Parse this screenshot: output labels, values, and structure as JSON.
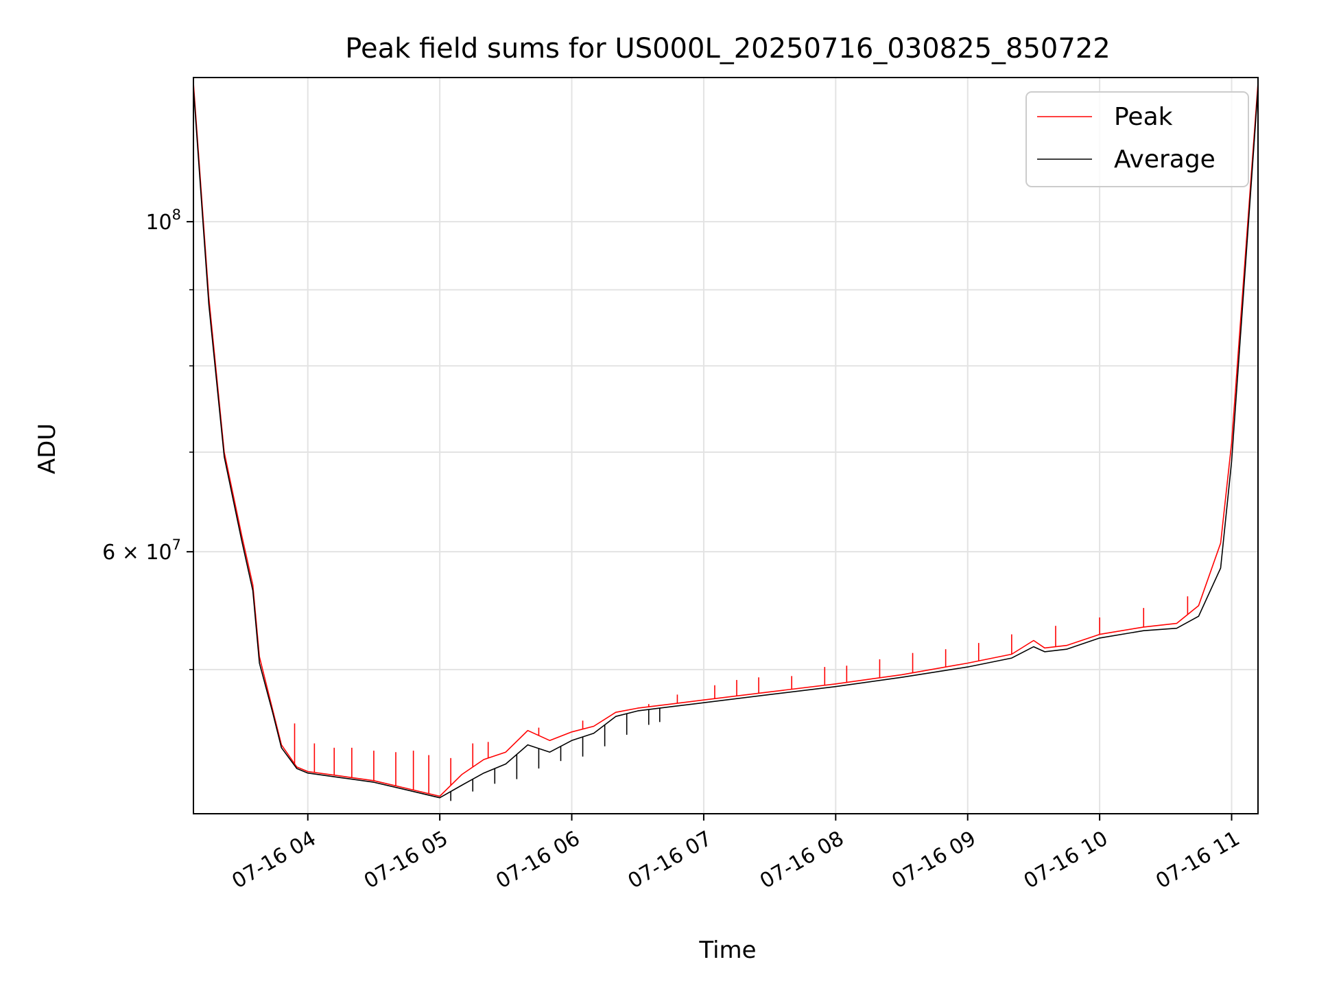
{
  "chart_data": {
    "type": "line",
    "title": "Peak field sums for US000L_20250716_030825_850722",
    "xlabel": "Time",
    "ylabel": "ADU",
    "yscale": "log",
    "xlim": [
      "2025-07-16T03:08",
      "2025-07-16T11:12"
    ],
    "ylim": [
      40000000,
      125000000
    ],
    "grid": true,
    "legend_position": "top-right",
    "x_ticks": [
      {
        "value": "2025-07-16T04:00",
        "label": "07-16 04"
      },
      {
        "value": "2025-07-16T05:00",
        "label": "07-16 05"
      },
      {
        "value": "2025-07-16T06:00",
        "label": "07-16 06"
      },
      {
        "value": "2025-07-16T07:00",
        "label": "07-16 07"
      },
      {
        "value": "2025-07-16T08:00",
        "label": "07-16 08"
      },
      {
        "value": "2025-07-16T09:00",
        "label": "07-16 09"
      },
      {
        "value": "2025-07-16T10:00",
        "label": "07-16 10"
      },
      {
        "value": "2025-07-16T11:00",
        "label": "07-16 11"
      }
    ],
    "y_major_ticks": [
      {
        "value": 100000000,
        "label_base": "10",
        "label_exp": "8",
        "label_coef": ""
      },
      {
        "value": 60000000,
        "label_base": "10",
        "label_exp": "7",
        "label_coef": "6 × "
      }
    ],
    "y_minor_ticks": [
      50000000,
      70000000,
      80000000,
      90000000
    ],
    "series": [
      {
        "name": "Peak",
        "color": "#ff0000",
        "x": [
          "2025-07-16T03:08",
          "2025-07-16T03:15",
          "2025-07-16T03:22",
          "2025-07-16T03:30",
          "2025-07-16T03:35",
          "2025-07-16T03:38",
          "2025-07-16T03:44",
          "2025-07-16T03:48",
          "2025-07-16T03:55",
          "2025-07-16T04:00",
          "2025-07-16T04:15",
          "2025-07-16T04:30",
          "2025-07-16T04:45",
          "2025-07-16T05:00",
          "2025-07-16T05:10",
          "2025-07-16T05:20",
          "2025-07-16T05:30",
          "2025-07-16T05:40",
          "2025-07-16T05:50",
          "2025-07-16T06:00",
          "2025-07-16T06:10",
          "2025-07-16T06:20",
          "2025-07-16T06:30",
          "2025-07-16T06:45",
          "2025-07-16T07:00",
          "2025-07-16T07:30",
          "2025-07-16T08:00",
          "2025-07-16T08:30",
          "2025-07-16T09:00",
          "2025-07-16T09:20",
          "2025-07-16T09:30",
          "2025-07-16T09:35",
          "2025-07-16T09:45",
          "2025-07-16T10:00",
          "2025-07-16T10:20",
          "2025-07-16T10:35",
          "2025-07-16T10:45",
          "2025-07-16T10:55",
          "2025-07-16T11:00",
          "2025-07-16T11:12"
        ],
        "y": [
          124000000,
          89000000,
          70000000,
          61500000,
          57000000,
          51000000,
          47000000,
          44500000,
          43000000,
          42700000,
          42400000,
          42100000,
          41600000,
          41100000,
          42500000,
          43500000,
          44000000,
          45500000,
          44800000,
          45400000,
          45800000,
          46800000,
          47100000,
          47400000,
          47700000,
          48300000,
          48900000,
          49600000,
          50500000,
          51200000,
          52300000,
          51700000,
          51900000,
          52800000,
          53400000,
          53700000,
          55200000,
          60800000,
          71000000,
          124000000
        ],
        "spikes": [
          [
            "2025-07-16T03:54",
            46000000
          ],
          [
            "2025-07-16T04:03",
            44600000
          ],
          [
            "2025-07-16T04:12",
            44300000
          ],
          [
            "2025-07-16T04:20",
            44300000
          ],
          [
            "2025-07-16T04:30",
            44100000
          ],
          [
            "2025-07-16T04:40",
            44000000
          ],
          [
            "2025-07-16T04:48",
            44100000
          ],
          [
            "2025-07-16T04:55",
            43800000
          ],
          [
            "2025-07-16T05:05",
            43600000
          ],
          [
            "2025-07-16T05:15",
            44600000
          ],
          [
            "2025-07-16T05:22",
            44700000
          ],
          [
            "2025-07-16T05:45",
            45700000
          ],
          [
            "2025-07-16T06:05",
            46200000
          ],
          [
            "2025-07-16T06:35",
            47400000
          ],
          [
            "2025-07-16T06:48",
            48100000
          ],
          [
            "2025-07-16T07:05",
            48800000
          ],
          [
            "2025-07-16T07:15",
            49200000
          ],
          [
            "2025-07-16T07:25",
            49400000
          ],
          [
            "2025-07-16T07:40",
            49500000
          ],
          [
            "2025-07-16T07:55",
            50200000
          ],
          [
            "2025-07-16T08:05",
            50300000
          ],
          [
            "2025-07-16T08:20",
            50800000
          ],
          [
            "2025-07-16T08:35",
            51300000
          ],
          [
            "2025-07-16T08:50",
            51600000
          ],
          [
            "2025-07-16T09:05",
            52100000
          ],
          [
            "2025-07-16T09:20",
            52800000
          ],
          [
            "2025-07-16T09:40",
            53500000
          ],
          [
            "2025-07-16T10:00",
            54200000
          ],
          [
            "2025-07-16T10:20",
            55000000
          ],
          [
            "2025-07-16T10:40",
            56000000
          ]
        ]
      },
      {
        "name": "Average",
        "color": "#000000",
        "x": [
          "2025-07-16T03:08",
          "2025-07-16T03:15",
          "2025-07-16T03:22",
          "2025-07-16T03:30",
          "2025-07-16T03:35",
          "2025-07-16T03:38",
          "2025-07-16T03:44",
          "2025-07-16T03:48",
          "2025-07-16T03:55",
          "2025-07-16T04:00",
          "2025-07-16T04:15",
          "2025-07-16T04:30",
          "2025-07-16T04:45",
          "2025-07-16T05:00",
          "2025-07-16T05:10",
          "2025-07-16T05:20",
          "2025-07-16T05:30",
          "2025-07-16T05:40",
          "2025-07-16T05:50",
          "2025-07-16T06:00",
          "2025-07-16T06:10",
          "2025-07-16T06:20",
          "2025-07-16T06:30",
          "2025-07-16T06:45",
          "2025-07-16T07:00",
          "2025-07-16T07:30",
          "2025-07-16T08:00",
          "2025-07-16T08:30",
          "2025-07-16T09:00",
          "2025-07-16T09:20",
          "2025-07-16T09:30",
          "2025-07-16T09:35",
          "2025-07-16T09:45",
          "2025-07-16T10:00",
          "2025-07-16T10:20",
          "2025-07-16T10:35",
          "2025-07-16T10:45",
          "2025-07-16T10:55",
          "2025-07-16T11:00",
          "2025-07-16T11:12"
        ],
        "y": [
          123000000,
          88000000,
          69500000,
          61000000,
          56500000,
          50500000,
          46800000,
          44300000,
          42900000,
          42600000,
          42300000,
          42000000,
          41500000,
          41000000,
          41800000,
          42600000,
          43200000,
          44500000,
          44000000,
          44800000,
          45300000,
          46500000,
          46900000,
          47200000,
          47500000,
          48100000,
          48700000,
          49400000,
          50200000,
          50900000,
          51800000,
          51400000,
          51600000,
          52500000,
          53100000,
          53300000,
          54300000,
          58500000,
          69000000,
          123000000
        ],
        "spikes": [
          [
            "2025-07-16T05:05",
            40800000
          ],
          [
            "2025-07-16T05:15",
            41400000
          ],
          [
            "2025-07-16T05:25",
            41900000
          ],
          [
            "2025-07-16T05:35",
            42200000
          ],
          [
            "2025-07-16T05:45",
            42900000
          ],
          [
            "2025-07-16T05:55",
            43400000
          ],
          [
            "2025-07-16T06:05",
            43700000
          ],
          [
            "2025-07-16T06:15",
            44400000
          ],
          [
            "2025-07-16T06:25",
            45200000
          ],
          [
            "2025-07-16T06:35",
            45900000
          ],
          [
            "2025-07-16T06:40",
            46100000
          ]
        ]
      }
    ]
  }
}
